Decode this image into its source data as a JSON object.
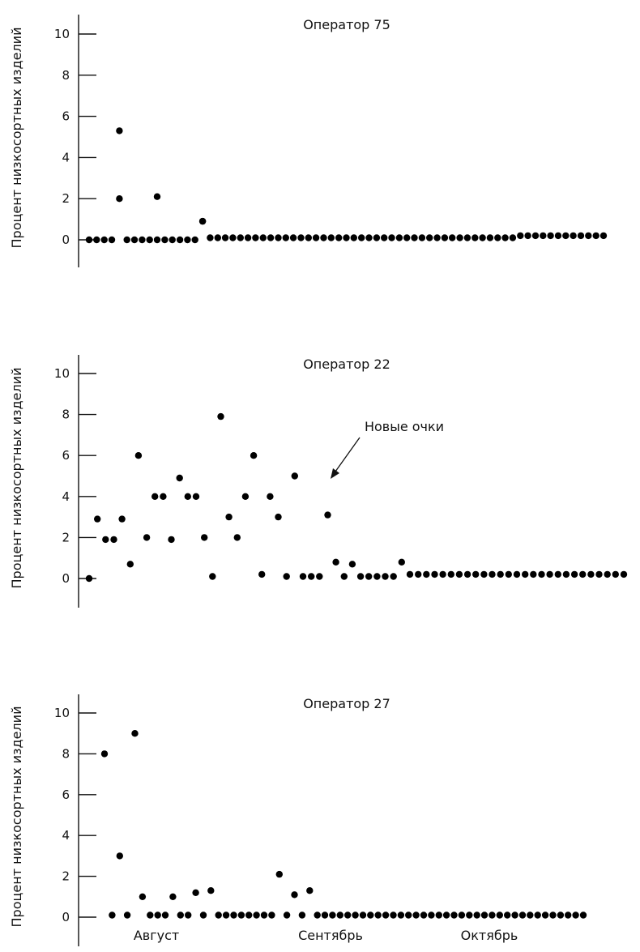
{
  "chart_data": [
    {
      "type": "scatter",
      "title": "Оператор 75",
      "ylabel": "Процент низкосортных изделий",
      "xlabel": "",
      "ylim": [
        0,
        10
      ],
      "yticks": [
        0,
        2,
        4,
        6,
        8,
        10
      ],
      "x_categories": [
        "Август",
        "Сентябрь",
        "Октябрь"
      ],
      "grid": false,
      "series": [
        {
          "x": [
            1,
            2,
            3,
            4,
            5,
            5,
            6,
            7,
            8,
            9,
            10,
            10,
            11,
            12,
            13,
            14,
            15,
            16,
            16,
            17,
            18,
            19,
            20,
            21,
            22,
            23,
            24,
            25,
            26,
            27,
            28,
            29,
            30,
            31,
            32,
            33,
            34,
            35,
            36,
            37,
            38,
            39,
            40,
            41,
            42,
            43,
            44,
            45,
            46,
            47,
            48,
            49,
            50,
            51,
            52,
            53,
            54,
            55,
            56,
            57,
            58,
            59,
            60,
            61,
            62,
            63,
            64,
            65,
            66,
            67,
            68,
            69
          ],
          "y": [
            0,
            0,
            0,
            0,
            5.3,
            2,
            0,
            0,
            0,
            0,
            0,
            2.1,
            0,
            0,
            0,
            0,
            0,
            0.9,
            0.9,
            0.1,
            0.1,
            0.1,
            0.1,
            0.1,
            0.1,
            0.1,
            0.1,
            0.1,
            0.1,
            0.1,
            0.1,
            0.1,
            0.1,
            0.1,
            0.1,
            0.1,
            0.1,
            0.1,
            0.1,
            0.1,
            0.1,
            0.1,
            0.1,
            0.1,
            0.1,
            0.1,
            0.1,
            0.1,
            0.1,
            0.1,
            0.1,
            0.1,
            0.1,
            0.1,
            0.1,
            0.1,
            0.1,
            0.1,
            0.1,
            0.1,
            0.2,
            0.2,
            0.2,
            0.2,
            0.2,
            0.2,
            0.2,
            0.2,
            0.2,
            0.2,
            0.2,
            0.2
          ]
        }
      ]
    },
    {
      "type": "scatter",
      "title": "Оператор 22",
      "ylabel": "Процент низкосортных изделий",
      "xlabel": "",
      "ylim": [
        0,
        10
      ],
      "yticks": [
        0,
        2,
        4,
        6,
        8,
        10
      ],
      "x_categories": [
        "Август",
        "Сентябрь",
        "Октябрь"
      ],
      "grid": false,
      "annotation": "Новые очки",
      "series": [
        {
          "x": [
            1,
            2,
            3,
            4,
            5,
            6,
            7,
            8,
            9,
            10,
            11,
            12,
            13,
            14,
            15,
            16,
            17,
            18,
            19,
            20,
            21,
            22,
            23,
            24,
            25,
            26,
            27,
            28,
            29,
            30,
            31,
            32,
            33,
            34,
            35,
            36,
            37,
            38,
            39,
            40,
            41,
            42,
            43,
            44,
            45,
            46,
            47,
            48,
            49,
            50,
            51,
            52,
            53,
            54,
            55,
            56,
            57,
            58,
            59,
            60,
            61,
            62,
            63,
            64,
            65,
            66
          ],
          "y": [
            0,
            2.9,
            1.9,
            1.9,
            2.9,
            0.7,
            6,
            2,
            4,
            4,
            1.9,
            4.9,
            4,
            4,
            2,
            0.1,
            7.9,
            3,
            2,
            4,
            6,
            0.2,
            4,
            3,
            0.1,
            5,
            0.1,
            0.1,
            0.1,
            3.1,
            0.8,
            0.1,
            0.7,
            0.1,
            0.1,
            0.1,
            0.1,
            0.1,
            0.8,
            0.2,
            0.2,
            0.2,
            0.2,
            0.2,
            0.2,
            0.2,
            0.2,
            0.2,
            0.2,
            0.2,
            0.2,
            0.2,
            0.2,
            0.2,
            0.2,
            0.2,
            0.2,
            0.2,
            0.2,
            0.2,
            0.2,
            0.2,
            0.2,
            0.2,
            0.2,
            0.2
          ]
        }
      ]
    },
    {
      "type": "scatter",
      "title": "Оператор 27",
      "ylabel": "Процент низкосортных изделий",
      "xlabel": "",
      "ylim": [
        0,
        10
      ],
      "yticks": [
        0,
        2,
        4,
        6,
        8,
        10
      ],
      "x_categories": [
        "Август",
        "Сентябрь",
        "Октябрь"
      ],
      "grid": false,
      "series": [
        {
          "x": [
            1,
            2,
            3,
            4,
            5,
            6,
            7,
            8,
            9,
            10,
            11,
            12,
            13,
            14,
            15,
            16,
            17,
            18,
            19,
            20,
            21,
            22,
            23,
            24,
            25,
            26,
            27,
            28,
            29,
            30,
            31,
            32,
            33,
            34,
            35,
            36,
            37,
            38,
            39,
            40,
            41,
            42,
            43,
            44,
            45,
            46,
            47,
            48,
            49,
            50,
            51,
            52,
            53,
            54,
            55,
            56,
            57,
            58,
            59,
            60,
            61,
            62,
            63,
            64
          ],
          "y": [
            8,
            0.1,
            3,
            0.1,
            9,
            1,
            0.1,
            0.1,
            0.1,
            1,
            0.1,
            0.1,
            1.2,
            0.1,
            1.3,
            0.1,
            0.1,
            0.1,
            0.1,
            0.1,
            0.1,
            0.1,
            0.1,
            2.1,
            0.1,
            1.1,
            0.1,
            1.3,
            0.1,
            0.1,
            0.1,
            0.1,
            0.1,
            0.1,
            0.1,
            0.1,
            0.1,
            0.1,
            0.1,
            0.1,
            0.1,
            0.1,
            0.1,
            0.1,
            0.1,
            0.1,
            0.1,
            0.1,
            0.1,
            0.1,
            0.1,
            0.1,
            0.1,
            0.1,
            0.1,
            0.1,
            0.1,
            0.1,
            0.1,
            0.1,
            0.1,
            0.1,
            0.1,
            0.1
          ]
        }
      ]
    }
  ]
}
